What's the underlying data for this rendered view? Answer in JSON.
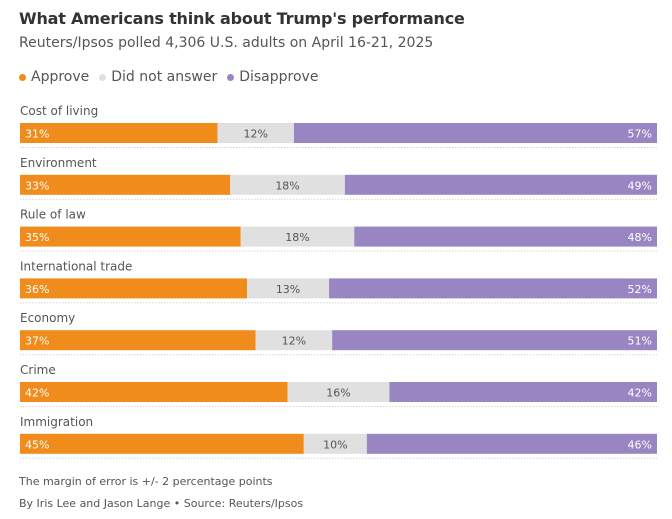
{
  "header": {
    "title": "What Americans think about Trump's performance",
    "subtitle": "Reuters/Ipsos polled 4,306 U.S. adults on April 16-21, 2025"
  },
  "legend": [
    {
      "label": "Approve",
      "color": "#f08c1c"
    },
    {
      "label": "Did not answer",
      "color": "#e0e0e0"
    },
    {
      "label": "Disapprove",
      "color": "#9a85c3"
    }
  ],
  "chart_data": {
    "type": "bar",
    "orientation": "horizontal",
    "stacked": true,
    "value_unit": "%",
    "categories": [
      "Cost of living",
      "Environment",
      "Rule of law",
      "International trade",
      "Economy",
      "Crime",
      "Immigration"
    ],
    "series": [
      {
        "name": "Approve",
        "color": "#f08c1c",
        "values": [
          31,
          33,
          35,
          36,
          37,
          42,
          45
        ]
      },
      {
        "name": "Did not answer",
        "color": "#e0e0e0",
        "values": [
          12,
          18,
          18,
          13,
          12,
          16,
          10
        ]
      },
      {
        "name": "Disapprove",
        "color": "#9a85c3",
        "values": [
          57,
          49,
          48,
          52,
          51,
          42,
          46
        ]
      }
    ]
  },
  "footer": {
    "note": "The margin of error is +/- 2 percentage points",
    "credit": "By Iris Lee and Jason Lange • Source: Reuters/Ipsos"
  }
}
